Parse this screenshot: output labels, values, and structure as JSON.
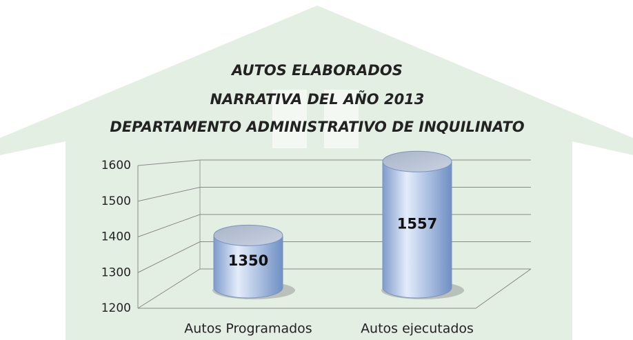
{
  "chart_data": {
    "type": "cylinder-bar",
    "title": [
      "AUTOS ELABORADOS",
      "NARRATIVA DEL AÑO 2013",
      "DEPARTAMENTO ADMINISTRATIVO DE INQUILINATO"
    ],
    "categories": [
      "Autos Programados",
      "Autos ejecutados"
    ],
    "values": [
      1350,
      1557
    ],
    "color": "#b8cdf0",
    "ylim": [
      1200,
      1600
    ],
    "yticks": [
      1200,
      1300,
      1400,
      1500,
      1600
    ],
    "grid": true
  }
}
